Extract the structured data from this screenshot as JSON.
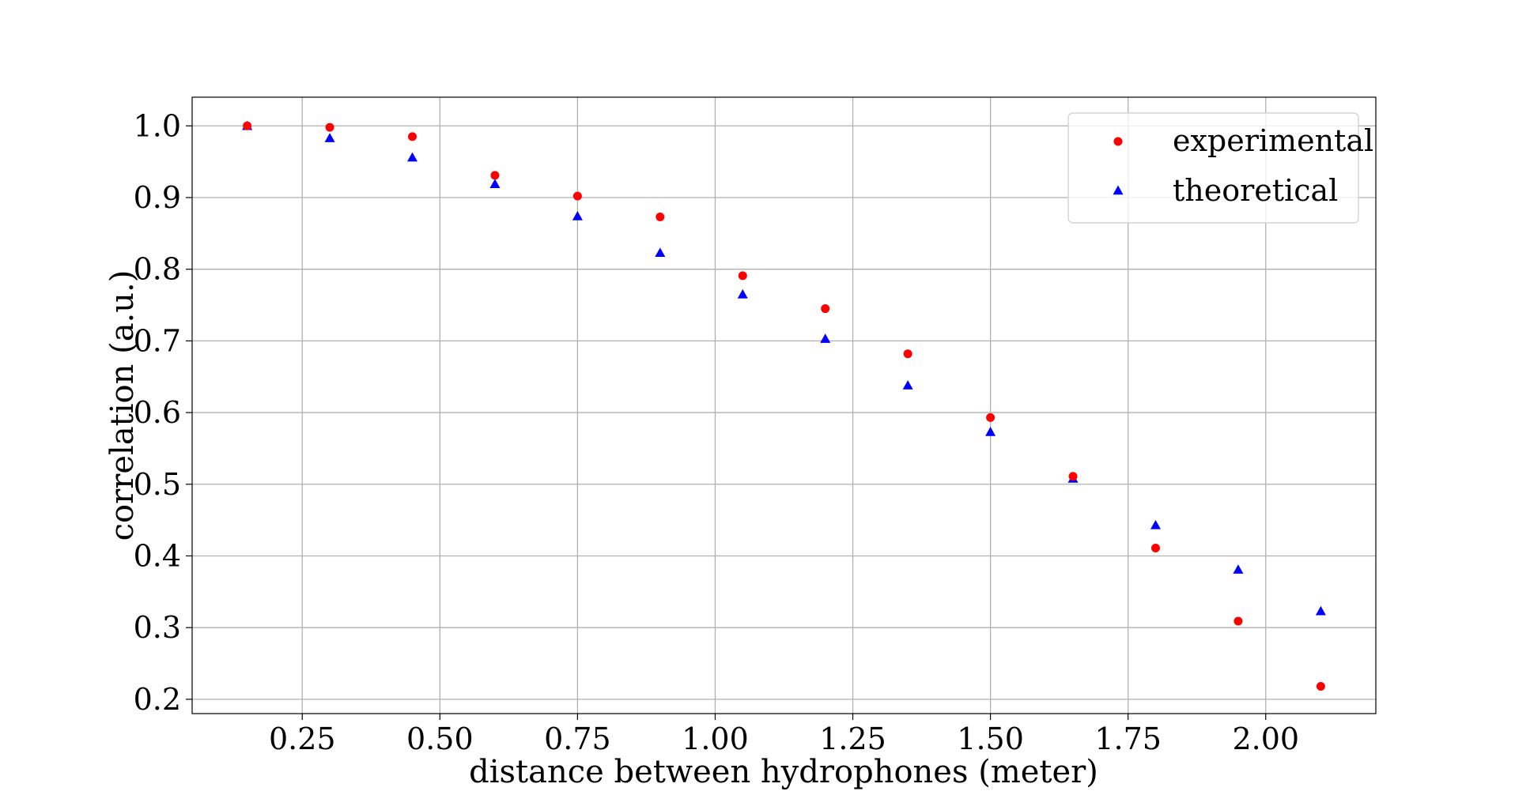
{
  "chart_data": {
    "type": "scatter",
    "title": "",
    "xlabel": "distance between hydrophones (meter)",
    "ylabel": "correlation (a.u.)",
    "xlim": [
      0.05,
      2.2
    ],
    "ylim": [
      0.18,
      1.04
    ],
    "xticks": [
      "0.25",
      "0.50",
      "0.75",
      "1.00",
      "1.25",
      "1.50",
      "1.75",
      "2.00"
    ],
    "yticks": [
      "0.2",
      "0.3",
      "0.4",
      "0.5",
      "0.6",
      "0.7",
      "0.8",
      "0.9",
      "1.0"
    ],
    "grid": true,
    "legend": "top-right",
    "x": [
      0.15,
      0.3,
      0.45,
      0.6,
      0.75,
      0.9,
      1.05,
      1.2,
      1.35,
      1.5,
      1.65,
      1.8,
      1.95,
      2.1
    ],
    "series": [
      {
        "name": "experimental",
        "marker": "circle",
        "color": "#ff0000",
        "values": [
          1.0,
          0.998,
          0.985,
          0.931,
          0.902,
          0.873,
          0.791,
          0.745,
          0.682,
          0.593,
          0.511,
          0.411,
          0.309,
          0.218
        ]
      },
      {
        "name": "theoretical",
        "marker": "triangle",
        "color": "#0000ff",
        "values": [
          1.0,
          0.983,
          0.956,
          0.919,
          0.874,
          0.823,
          0.765,
          0.703,
          0.638,
          0.573,
          0.508,
          0.443,
          0.381,
          0.323
        ]
      }
    ]
  }
}
